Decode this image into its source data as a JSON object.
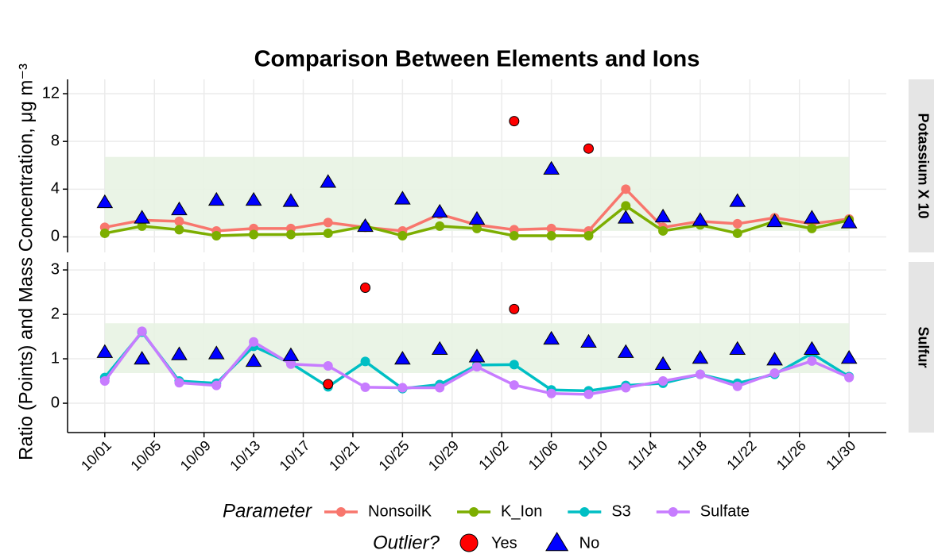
{
  "chart_data": {
    "type": "line",
    "title": "Comparison Between Elements and Ions",
    "ylabel": "Ratio (Points) and  Mass Concentration, μg m⁻³",
    "x": [
      "10/01",
      "10/04",
      "10/07",
      "10/10",
      "10/13",
      "10/16",
      "10/19",
      "10/22",
      "10/25",
      "10/28",
      "10/31",
      "11/03",
      "11/06",
      "11/09",
      "11/12",
      "11/15",
      "11/18",
      "11/21",
      "11/24",
      "11/27",
      "11/30"
    ],
    "xlim": [
      "09/28",
      "12/03"
    ],
    "xticks": [
      "10/01",
      "10/05",
      "10/09",
      "10/13",
      "10/17",
      "10/21",
      "10/25",
      "10/29",
      "11/02",
      "11/06",
      "11/10",
      "11/14",
      "11/18",
      "11/22",
      "11/26",
      "11/30"
    ],
    "grid": true,
    "legend_title": "Parameter",
    "outlier_title": "Outlier?",
    "outlier_levels": [
      {
        "label": "Yes",
        "color": "#ff0000",
        "shape": "circle"
      },
      {
        "label": "No",
        "color": "#0000ff",
        "shape": "triangle"
      }
    ],
    "band_color": "#e8f3e3",
    "panels": [
      {
        "strip": "Potassium X 10",
        "ylim": [
          -1.3,
          13.2
        ],
        "yticks": [
          0,
          4,
          8,
          12
        ],
        "band": [
          0.5,
          6.7
        ],
        "series": [
          {
            "name": "NonsoilK",
            "color": "#f8766d",
            "values": [
              0.8,
              1.4,
              1.3,
              0.5,
              0.7,
              0.7,
              1.2,
              0.8,
              0.5,
              1.9,
              1.0,
              0.6,
              0.7,
              0.5,
              4.0,
              0.8,
              1.3,
              1.1,
              1.6,
              1.1,
              1.5
            ]
          },
          {
            "name": "K_Ion",
            "color": "#7cae00",
            "values": [
              0.3,
              0.9,
              0.6,
              0.1,
              0.2,
              0.2,
              0.3,
              0.9,
              0.1,
              0.9,
              0.7,
              0.1,
              0.1,
              0.1,
              2.6,
              0.5,
              1.0,
              0.3,
              1.3,
              0.7,
              1.4
            ]
          }
        ],
        "ratio": {
          "values": [
            2.9,
            1.6,
            2.3,
            3.1,
            3.1,
            3.0,
            4.6,
            0.9,
            3.2,
            2.1,
            1.5,
            9.7,
            5.7,
            7.4,
            1.6,
            1.7,
            1.4,
            3.0,
            1.3,
            1.6,
            1.2
          ],
          "outlier": [
            false,
            false,
            false,
            false,
            false,
            false,
            false,
            false,
            false,
            false,
            false,
            true,
            false,
            true,
            false,
            false,
            false,
            false,
            false,
            false,
            false
          ]
        }
      },
      {
        "strip": "Sulfur",
        "ylim": [
          -0.66,
          3.18
        ],
        "yticks": [
          0,
          1,
          2,
          3
        ],
        "band": [
          0.68,
          1.8
        ],
        "series": [
          {
            "name": "S3",
            "color": "#00bfc4",
            "values": [
              0.58,
              1.6,
              0.5,
              0.45,
              1.28,
              0.9,
              0.37,
              0.94,
              0.33,
              0.42,
              0.86,
              0.87,
              0.3,
              0.28,
              0.4,
              0.45,
              0.65,
              0.45,
              0.65,
              1.12,
              0.6
            ]
          },
          {
            "name": "Sulfate",
            "color": "#c77cff",
            "values": [
              0.5,
              1.62,
              0.46,
              0.4,
              1.38,
              0.88,
              0.84,
              0.36,
              0.35,
              0.35,
              0.82,
              0.41,
              0.22,
              0.2,
              0.35,
              0.5,
              0.65,
              0.38,
              0.68,
              0.95,
              0.58
            ]
          }
        ],
        "ratio": {
          "values": [
            1.15,
            1.0,
            1.1,
            1.12,
            0.95,
            1.08,
            0.43,
            2.6,
            1.0,
            1.22,
            1.05,
            2.12,
            1.45,
            1.38,
            1.15,
            0.88,
            1.02,
            1.22,
            0.98,
            1.22,
            1.02
          ],
          "outlier": [
            false,
            false,
            false,
            false,
            false,
            false,
            true,
            true,
            false,
            false,
            false,
            true,
            false,
            false,
            false,
            false,
            false,
            false,
            false,
            false,
            false
          ]
        }
      }
    ]
  }
}
